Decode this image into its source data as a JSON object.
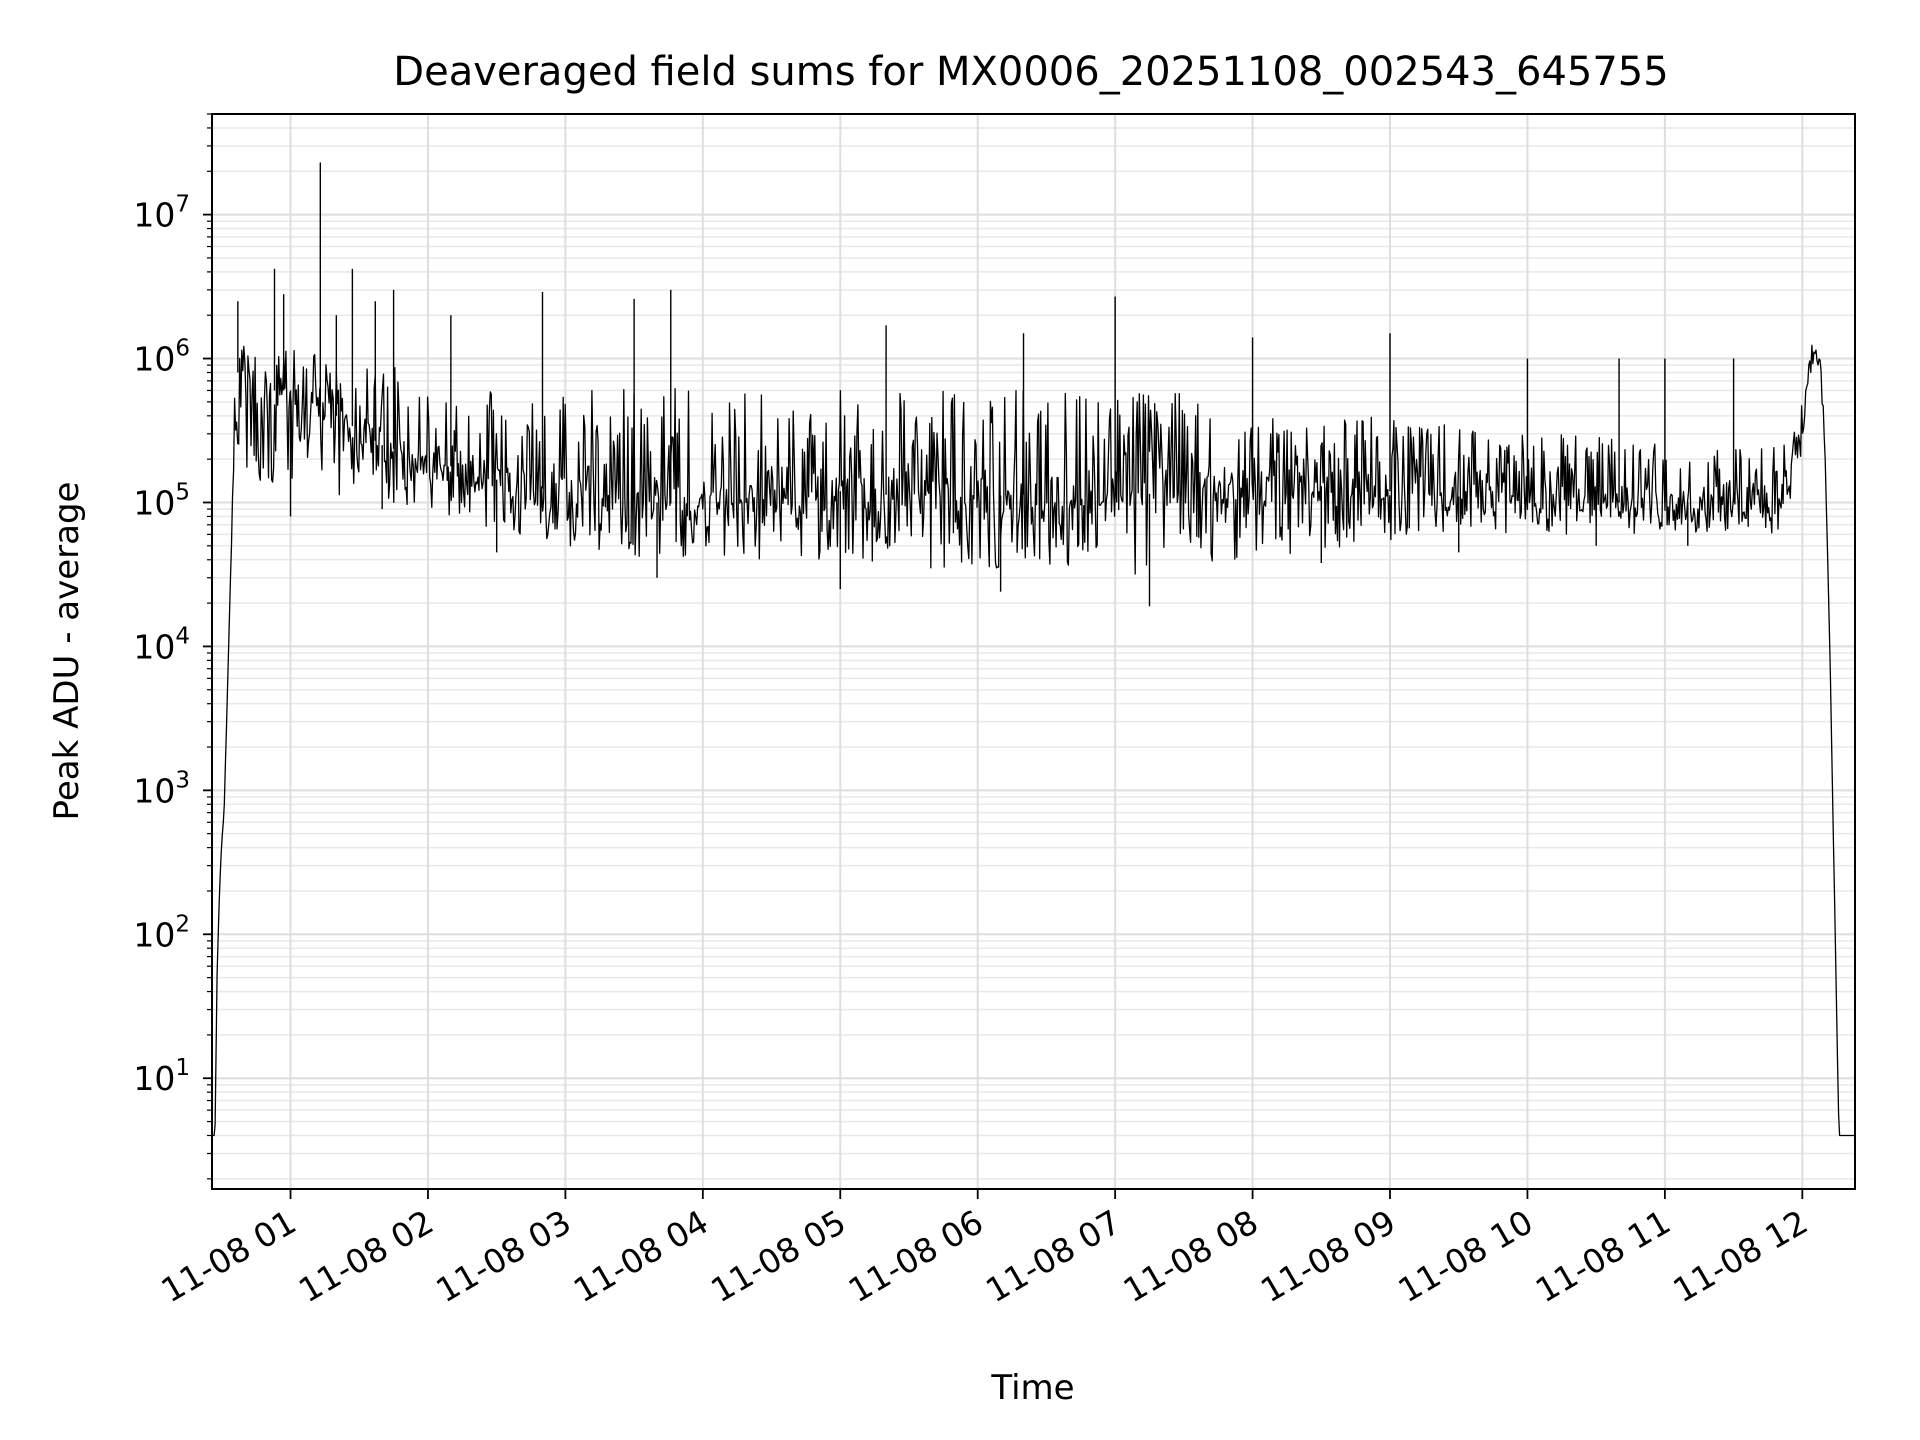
{
  "chart_data": {
    "type": "line",
    "title": "Deaveraged field sums for MX0006_20251108_002543_645755",
    "xlabel": "Time",
    "ylabel": "Peak ADU - average",
    "x_scale": "time",
    "y_scale": "log",
    "xlim": [
      "2025-11-08 00:25:43",
      "2025-11-08 12:23:00"
    ],
    "ylim": [
      1.7,
      50000000
    ],
    "grid": "major and minor",
    "legend": "none",
    "line_color": "#000000",
    "x_ticks": [
      "11-08 01",
      "11-08 02",
      "11-08 03",
      "11-08 04",
      "11-08 05",
      "11-08 06",
      "11-08 07",
      "11-08 08",
      "11-08 09",
      "11-08 10",
      "11-08 11",
      "11-08 12"
    ],
    "y_ticks": [
      {
        "value": 10,
        "base": "10",
        "exp": "1"
      },
      {
        "value": 100,
        "base": "10",
        "exp": "2"
      },
      {
        "value": 1000,
        "base": "10",
        "exp": "3"
      },
      {
        "value": 10000,
        "base": "10",
        "exp": "4"
      },
      {
        "value": 100000,
        "base": "10",
        "exp": "5"
      },
      {
        "value": 1000000,
        "base": "10",
        "exp": "6"
      },
      {
        "value": 10000000,
        "base": "10",
        "exp": "7"
      }
    ],
    "series": [
      {
        "x": [
          "2025-11-08 00:25:43",
          "2025-11-08 00:27:00",
          "2025-11-08 00:28:00",
          "2025-11-08 00:29:00",
          "2025-11-08 00:30:00",
          "2025-11-08 00:31:00",
          "2025-11-08 00:33:00",
          "2025-11-08 00:35:00",
          "2025-11-08 00:37:00",
          "2025-11-08 00:39:00",
          "2025-11-08 00:42:00",
          "2025-11-08 00:45:00",
          "2025-11-08 00:50:00",
          "2025-11-08 01:00:00",
          "2025-11-08 01:20:00",
          "2025-11-08 01:40:00",
          "2025-11-08 02:00:00",
          "2025-11-08 02:20:00",
          "2025-11-08 02:40:00",
          "2025-11-08 03:00:00",
          "2025-11-08 03:20:00",
          "2025-11-08 03:40:00",
          "2025-11-08 04:00:00",
          "2025-11-08 04:20:00",
          "2025-11-08 04:40:00",
          "2025-11-08 05:00:00",
          "2025-11-08 05:30:00",
          "2025-11-08 06:00:00",
          "2025-11-08 06:30:00",
          "2025-11-08 07:00:00",
          "2025-11-08 07:30:00",
          "2025-11-08 08:00:00",
          "2025-11-08 08:30:00",
          "2025-11-08 09:00:00",
          "2025-11-08 09:30:00",
          "2025-11-08 10:00:00",
          "2025-11-08 10:30:00",
          "2025-11-08 11:00:00",
          "2025-11-08 11:30:00",
          "2025-11-08 11:50:00",
          "2025-11-08 11:55:00",
          "2025-11-08 12:00:00",
          "2025-11-08 12:02:00",
          "2025-11-08 12:05:00",
          "2025-11-08 12:08:00",
          "2025-11-08 12:10:00",
          "2025-11-08 12:12:00",
          "2025-11-08 12:14:00",
          "2025-11-08 12:16:00",
          "2025-11-08 12:23:00"
        ],
        "y": [
          4,
          4,
          60,
          200,
          450,
          700,
          10000,
          200000,
          800000,
          1100000,
          700000,
          700000,
          600000,
          600000,
          400000,
          250000,
          200000,
          160000,
          130000,
          120000,
          110000,
          100000,
          95000,
          110000,
          110000,
          120000,
          110000,
          110000,
          115000,
          110000,
          120000,
          130000,
          130000,
          120000,
          110000,
          100000,
          100000,
          100000,
          100000,
          100000,
          150000,
          300000,
          800000,
          1100000,
          1000000,
          200000,
          10000,
          200,
          4,
          4
        ],
        "upper": [
          4,
          4,
          60,
          200,
          450,
          700,
          10000,
          500000,
          1200000,
          1300000,
          1100000,
          1200000,
          1200000,
          1200000,
          1100000,
          900000,
          800000,
          650000,
          600000,
          600000,
          600000,
          650000,
          650000,
          600000,
          600000,
          600000,
          600000,
          600000,
          600000,
          600000,
          600000,
          400000,
          400000,
          400000,
          350000,
          300000,
          300000,
          250000,
          250000,
          250000,
          350000,
          700000,
          1200000,
          1300000,
          1100000,
          200000,
          10000,
          200,
          4,
          4
        ],
        "lower": [
          4,
          4,
          60,
          200,
          450,
          700,
          10000,
          150000,
          250000,
          200000,
          150000,
          130000,
          120000,
          130000,
          110000,
          90000,
          80000,
          70000,
          60000,
          50000,
          45000,
          40000,
          40000,
          40000,
          40000,
          35000,
          35000,
          35000,
          35000,
          30000,
          35000,
          40000,
          45000,
          55000,
          60000,
          60000,
          60000,
          60000,
          60000,
          60000,
          80000,
          200000,
          500000,
          900000,
          900000,
          200000,
          10000,
          200,
          4,
          4
        ],
        "spikes": [
          {
            "x": "2025-11-08 00:37:00",
            "y": 2500000
          },
          {
            "x": "2025-11-08 00:53:00",
            "y": 4200000
          },
          {
            "x": "2025-11-08 00:57:00",
            "y": 2800000
          },
          {
            "x": "2025-11-08 01:13:00",
            "y": 23000000
          },
          {
            "x": "2025-11-08 01:20:00",
            "y": 2000000
          },
          {
            "x": "2025-11-08 01:27:00",
            "y": 4200000
          },
          {
            "x": "2025-11-08 01:37:00",
            "y": 2500000
          },
          {
            "x": "2025-11-08 01:45:00",
            "y": 3000000
          },
          {
            "x": "2025-11-08 02:10:00",
            "y": 2000000
          },
          {
            "x": "2025-11-08 02:50:00",
            "y": 2900000
          },
          {
            "x": "2025-11-08 03:30:00",
            "y": 2600000
          },
          {
            "x": "2025-11-08 03:46:00",
            "y": 3000000
          },
          {
            "x": "2025-11-08 05:20:00",
            "y": 1700000
          },
          {
            "x": "2025-11-08 06:20:00",
            "y": 1500000
          },
          {
            "x": "2025-11-08 07:00:00",
            "y": 2700000
          },
          {
            "x": "2025-11-08 08:00:00",
            "y": 1400000
          },
          {
            "x": "2025-11-08 09:00:00",
            "y": 1500000
          },
          {
            "x": "2025-11-08 10:00:00",
            "y": 1000000
          },
          {
            "x": "2025-11-08 10:40:00",
            "y": 1000000
          },
          {
            "x": "2025-11-08 11:00:00",
            "y": 1000000
          },
          {
            "x": "2025-11-08 11:30:00",
            "y": 1000000
          }
        ],
        "dips": [
          {
            "x": "2025-11-08 01:00:00",
            "y": 80000
          },
          {
            "x": "2025-11-08 01:40:00",
            "y": 90000
          },
          {
            "x": "2025-11-08 02:30:00",
            "y": 45000
          },
          {
            "x": "2025-11-08 03:40:00",
            "y": 30000
          },
          {
            "x": "2025-11-08 05:00:00",
            "y": 25000
          },
          {
            "x": "2025-11-08 06:10:00",
            "y": 24000
          },
          {
            "x": "2025-11-08 07:15:00",
            "y": 19000
          },
          {
            "x": "2025-11-08 08:30:00",
            "y": 38000
          },
          {
            "x": "2025-11-08 09:30:00",
            "y": 45000
          },
          {
            "x": "2025-11-08 10:30:00",
            "y": 50000
          },
          {
            "x": "2025-11-08 11:10:00",
            "y": 50000
          }
        ]
      }
    ]
  }
}
